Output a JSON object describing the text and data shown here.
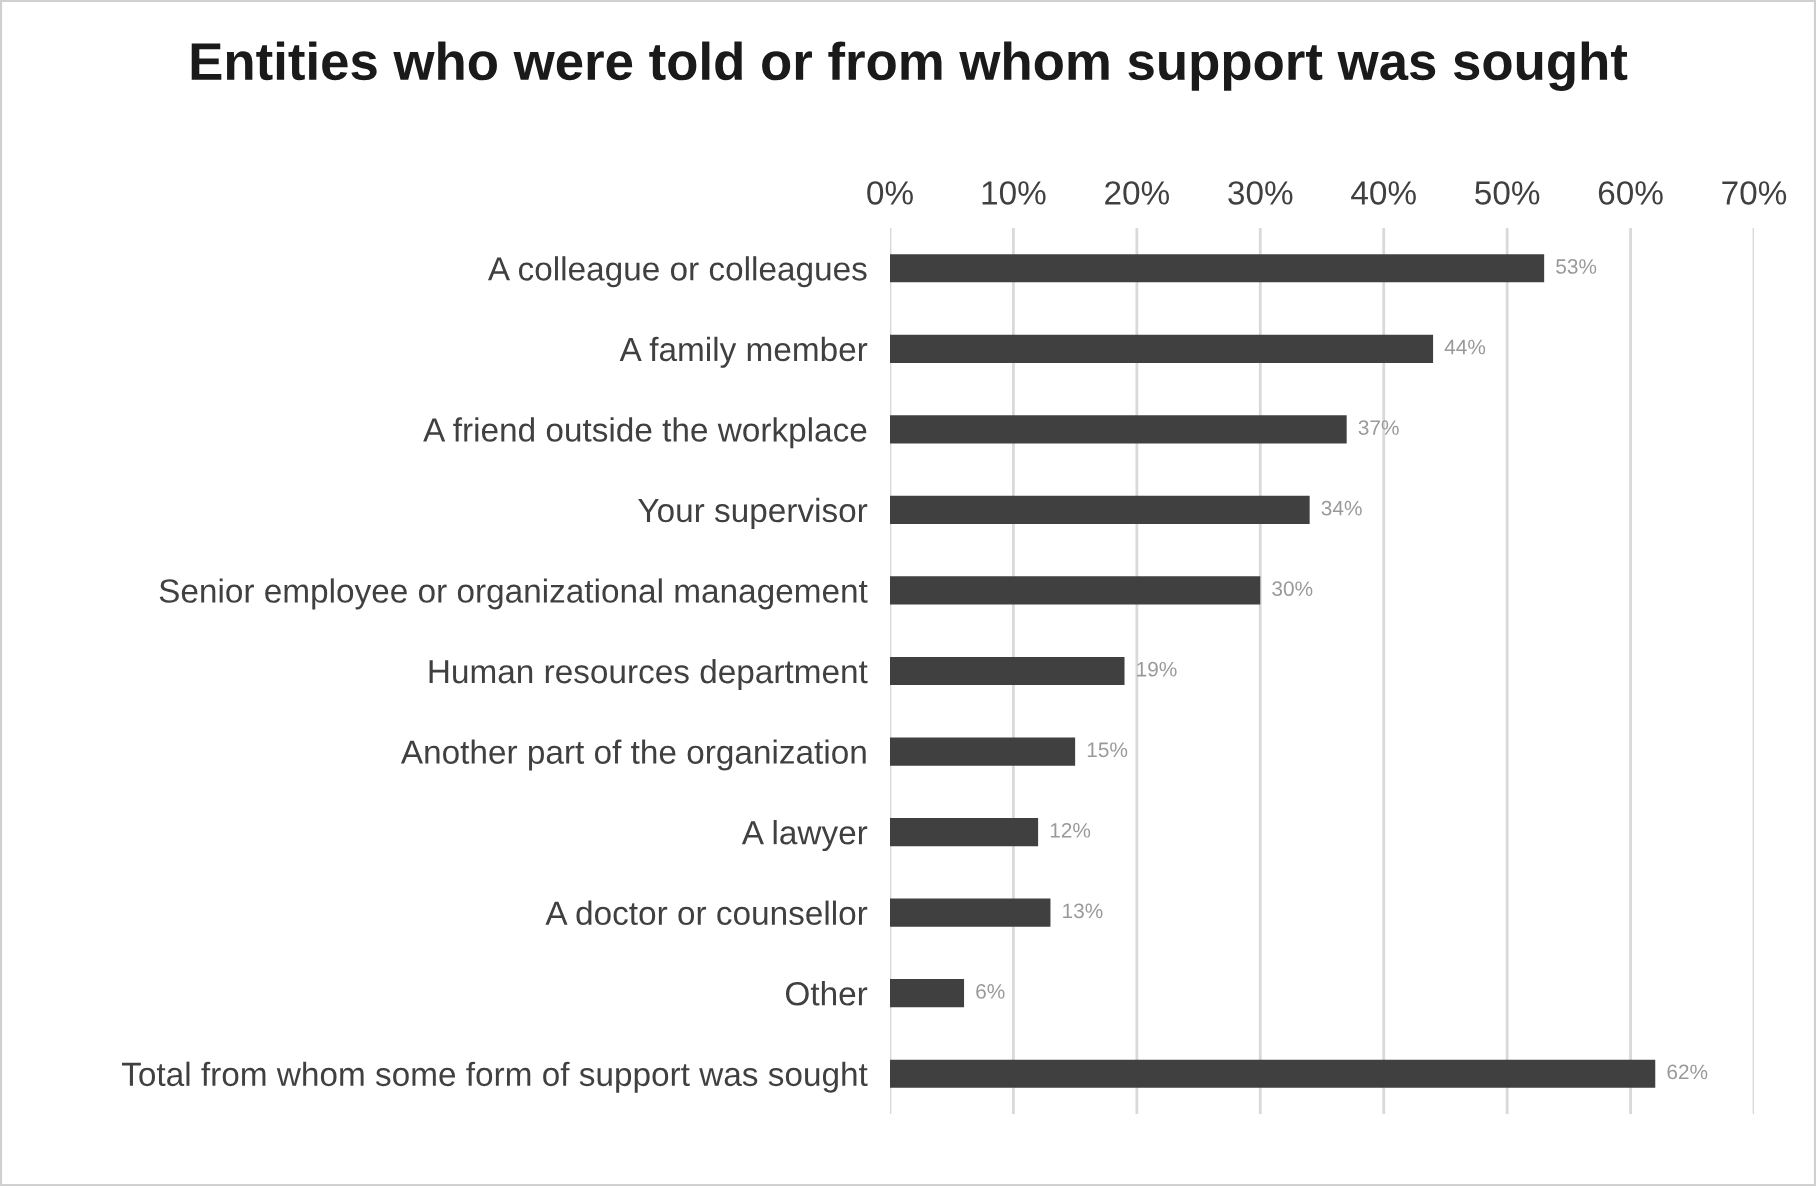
{
  "chart_data": {
    "type": "bar",
    "orientation": "horizontal",
    "title": "Entities who were told or from whom support was sought",
    "categories": [
      "A colleague or colleagues",
      "A family member",
      "A friend outside the workplace",
      "Your supervisor",
      "Senior employee or organizational management",
      "Human resources department",
      "Another part of the organization",
      "A lawyer",
      "A doctor or counsellor",
      "Other",
      "Total from whom some form of support was sought"
    ],
    "values": [
      53,
      44,
      37,
      34,
      30,
      19,
      15,
      12,
      13,
      6,
      62
    ],
    "value_labels": [
      "53%",
      "44%",
      "37%",
      "34%",
      "30%",
      "19%",
      "15%",
      "12%",
      "13%",
      "6%",
      "62%"
    ],
    "color": "#404040",
    "xlim": [
      0,
      70
    ],
    "xticks": [
      {
        "value": 0,
        "label": "0%"
      },
      {
        "value": 10,
        "label": "10%"
      },
      {
        "value": 20,
        "label": "20%"
      },
      {
        "value": 30,
        "label": "30%"
      },
      {
        "value": 40,
        "label": "40%"
      },
      {
        "value": 50,
        "label": "50%"
      },
      {
        "value": 60,
        "label": "60%"
      },
      {
        "value": 70,
        "label": "70%"
      }
    ],
    "grid": "x",
    "legend": false
  }
}
